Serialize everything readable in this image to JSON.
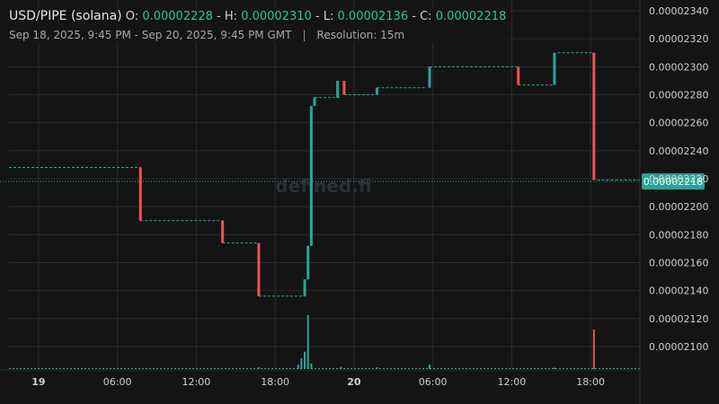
{
  "header": {
    "pair": "USD/PIPE (solana)",
    "open_label": "O:",
    "open": "0.00002228",
    "high_label": "H:",
    "high": "0.00002310",
    "low_label": "L:",
    "low": "0.00002136",
    "close_label": "C:",
    "close": "0.00002218",
    "range": "Sep 18, 2025, 9:45 PM - Sep 20, 2025, 9:45 PM GMT",
    "separator": "|",
    "resolution": "Resolution: 15m"
  },
  "watermark": "defined.fi",
  "colors": {
    "background": "#141414",
    "up": "#26a69a",
    "down": "#ef5350",
    "grid": "#2a2a2a",
    "price_line": "#26a69a",
    "axis_text": "#cfcfcf"
  },
  "chart_data": {
    "type": "candlestick",
    "y_ticks": [
      "0.00002340",
      "0.00002320",
      "0.00002300",
      "0.00002280",
      "0.00002260",
      "0.00002240",
      "0.00002220",
      "0.00002200",
      "0.00002180",
      "0.00002160",
      "0.00002140",
      "0.00002120",
      "0.00002100"
    ],
    "ylim": [
      2.08e-05,
      2.34e-05
    ],
    "x_ticks": [
      {
        "label": "19",
        "bold": true,
        "hour": 2.25
      },
      {
        "label": "06:00",
        "bold": false,
        "hour": 8.25
      },
      {
        "label": "12:00",
        "bold": false,
        "hour": 14.25
      },
      {
        "label": "18:00",
        "bold": false,
        "hour": 20.25
      },
      {
        "label": "20",
        "bold": true,
        "hour": 26.25
      },
      {
        "label": "06:00",
        "bold": false,
        "hour": 32.25
      },
      {
        "label": "12:00",
        "bold": false,
        "hour": 38.25
      },
      {
        "label": "18:00",
        "bold": false,
        "hour": 44.25
      }
    ],
    "xlim_hours": [
      0,
      48
    ],
    "current_price": "0.00002218",
    "level_segments": [
      {
        "from": 0,
        "to": 10,
        "price": 2.228e-05
      },
      {
        "from": 10,
        "to": 16.25,
        "price": 2.19e-05
      },
      {
        "from": 16.25,
        "to": 19,
        "price": 2.174e-05
      },
      {
        "from": 19,
        "to": 22.5,
        "price": 2.136e-05
      },
      {
        "from": 23.25,
        "to": 25.25,
        "price": 2.278e-05
      },
      {
        "from": 25.5,
        "to": 27.75,
        "price": 2.28e-05
      },
      {
        "from": 28,
        "to": 31.75,
        "price": 2.285e-05
      },
      {
        "from": 32,
        "to": 38.75,
        "price": 2.3e-05
      },
      {
        "from": 38.75,
        "to": 41.5,
        "price": 2.287e-05
      },
      {
        "from": 41.75,
        "to": 44.5,
        "price": 2.31e-05
      },
      {
        "from": 44.75,
        "to": 48,
        "price": 2.219e-05
      }
    ],
    "candles": [
      {
        "hour": 10.0,
        "open": 2.228e-05,
        "close": 2.19e-05
      },
      {
        "hour": 16.25,
        "open": 2.19e-05,
        "close": 2.174e-05
      },
      {
        "hour": 19.0,
        "open": 2.174e-05,
        "close": 2.136e-05
      },
      {
        "hour": 22.5,
        "open": 2.136e-05,
        "close": 2.148e-05
      },
      {
        "hour": 22.75,
        "open": 2.148e-05,
        "close": 2.172e-05
      },
      {
        "hour": 23.0,
        "open": 2.172e-05,
        "close": 2.272e-05
      },
      {
        "hour": 23.25,
        "open": 2.272e-05,
        "close": 2.278e-05
      },
      {
        "hour": 25.0,
        "open": 2.278e-05,
        "close": 2.29e-05
      },
      {
        "hour": 25.5,
        "open": 2.29e-05,
        "close": 2.28e-05
      },
      {
        "hour": 28.0,
        "open": 2.28e-05,
        "close": 2.285e-05
      },
      {
        "hour": 32.0,
        "open": 2.285e-05,
        "close": 2.3e-05
      },
      {
        "hour": 38.75,
        "open": 2.3e-05,
        "close": 2.287e-05
      },
      {
        "hour": 41.5,
        "open": 2.287e-05,
        "close": 2.31e-05
      },
      {
        "hour": 44.5,
        "open": 2.31e-05,
        "close": 2.219e-05
      }
    ],
    "volume": [
      {
        "hour": 19.0,
        "value": 0.03,
        "up": true
      },
      {
        "hour": 22.0,
        "value": 0.08,
        "up": true
      },
      {
        "hour": 22.25,
        "value": 0.2,
        "up": true
      },
      {
        "hour": 22.5,
        "value": 0.32,
        "up": true
      },
      {
        "hour": 22.75,
        "value": 1.0,
        "up": true
      },
      {
        "hour": 23.0,
        "value": 0.1,
        "up": true
      },
      {
        "hour": 25.25,
        "value": 0.04,
        "up": true
      },
      {
        "hour": 28.0,
        "value": 0.03,
        "up": true
      },
      {
        "hour": 32.0,
        "value": 0.08,
        "up": true
      },
      {
        "hour": 41.5,
        "value": 0.02,
        "up": true
      },
      {
        "hour": 44.5,
        "value": 0.73,
        "up": false
      }
    ]
  }
}
